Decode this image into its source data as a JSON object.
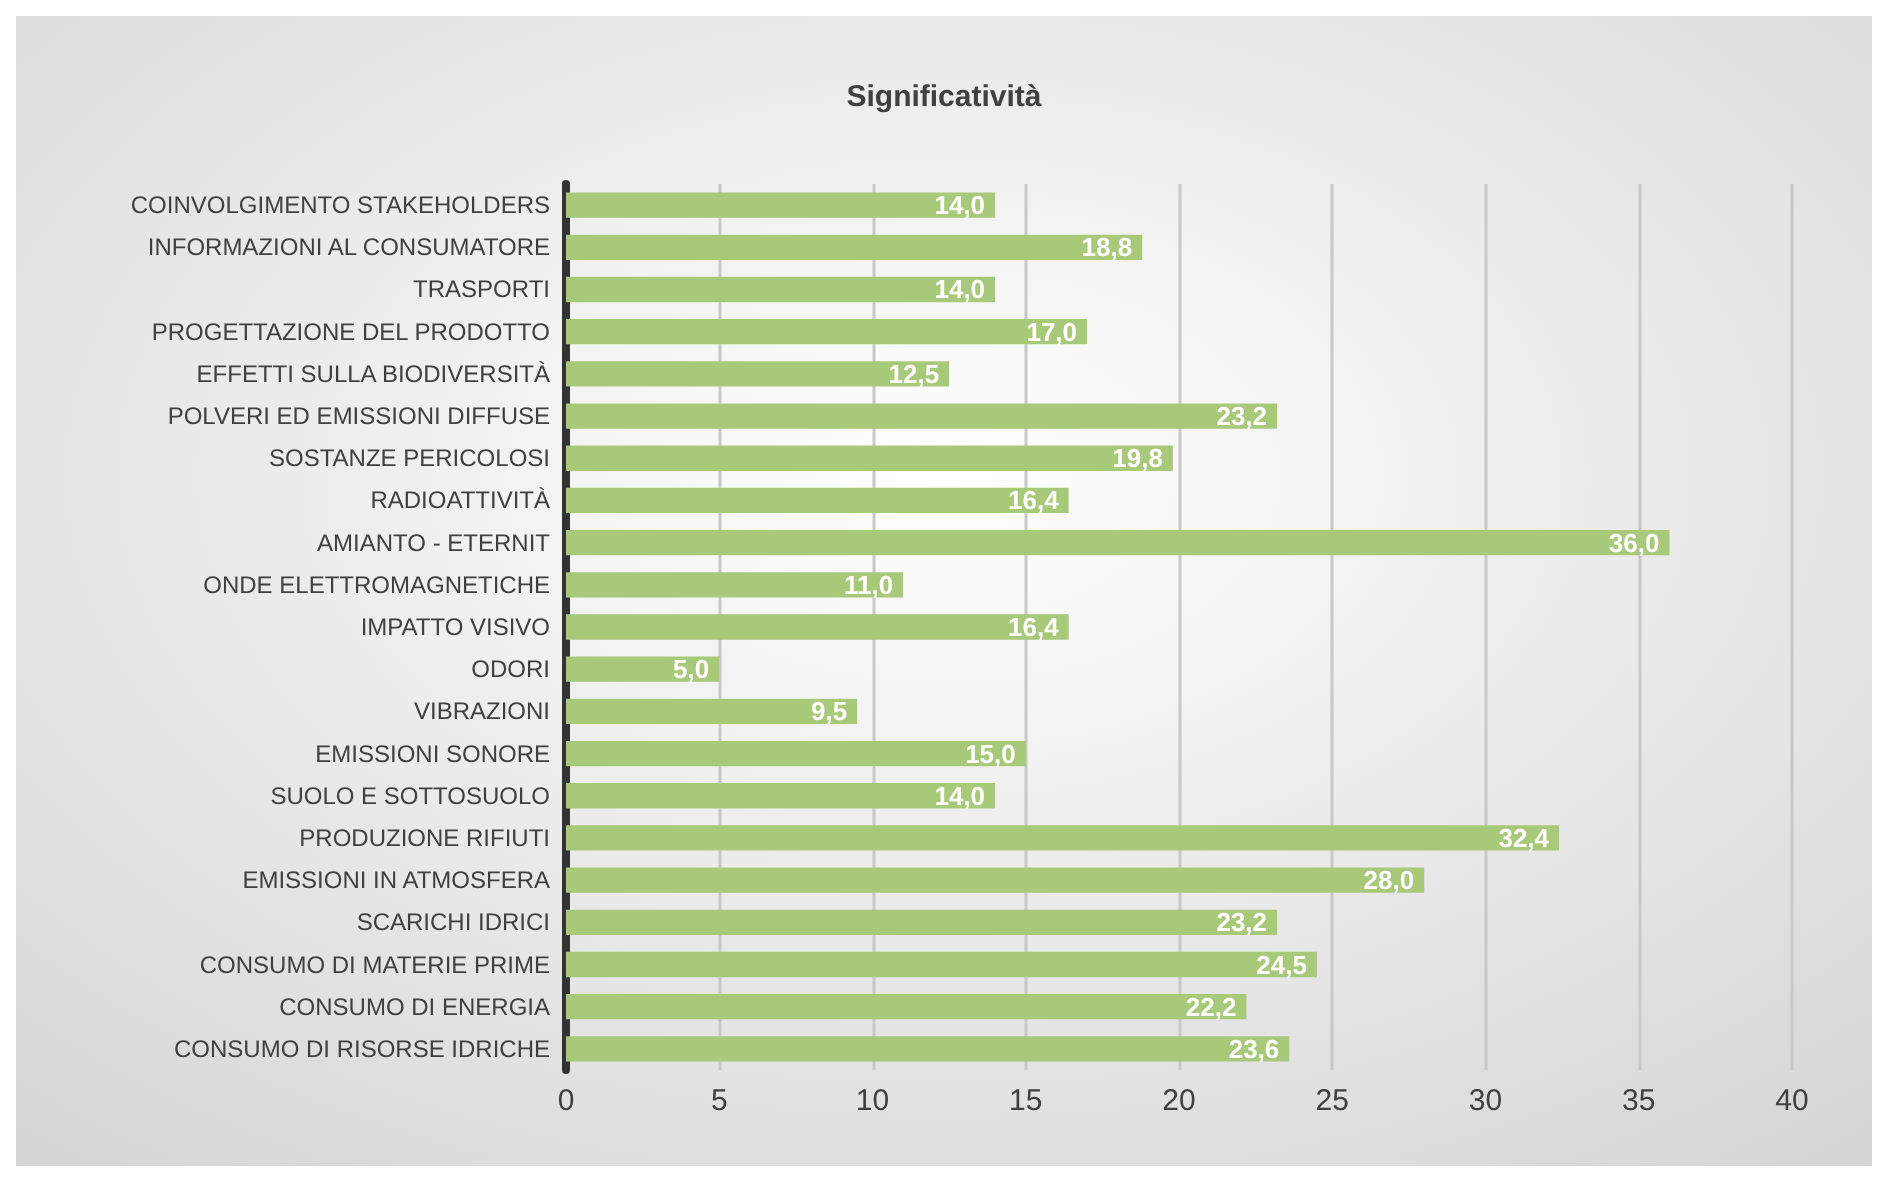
{
  "chart_data": {
    "type": "bar",
    "title": "Significatività",
    "orientation": "horizontal",
    "categories": [
      "COINVOLGIMENTO STAKEHOLDERS",
      "INFORMAZIONI AL CONSUMATORE",
      "TRASPORTI",
      "PROGETTAZIONE DEL PRODOTTO",
      "EFFETTI SULLA BIODIVERSITÀ",
      "POLVERI ED EMISSIONI DIFFUSE",
      "SOSTANZE PERICOLOSI",
      "RADIOATTIVITÀ",
      "AMIANTO - ETERNIT",
      "ONDE ELETTROMAGNETICHE",
      "IMPATTO VISIVO",
      "ODORI",
      "VIBRAZIONI",
      "EMISSIONI SONORE",
      "SUOLO E SOTTOSUOLO",
      "PRODUZIONE RIFIUTI",
      "EMISSIONI IN ATMOSFERA",
      "SCARICHI IDRICI",
      "CONSUMO DI MATERIE PRIME",
      "CONSUMO DI ENERGIA",
      "CONSUMO DI RISORSE IDRICHE"
    ],
    "values": [
      14.0,
      18.8,
      14.0,
      17.0,
      12.5,
      23.2,
      19.8,
      16.4,
      36.0,
      11.0,
      16.4,
      5.0,
      9.5,
      15.0,
      14.0,
      32.4,
      28.0,
      23.2,
      24.5,
      22.2,
      23.6
    ],
    "value_labels": [
      "14,0",
      "18,8",
      "14,0",
      "17,0",
      "12,5",
      "23,2",
      "19,8",
      "16,4",
      "36,0",
      "11,0",
      "16,4",
      "5,0",
      "9,5",
      "15,0",
      "14,0",
      "32,4",
      "28,0",
      "23,2",
      "24,5",
      "22,2",
      "23,6"
    ],
    "color": "#a9c97a",
    "xlim": [
      0,
      40
    ],
    "xticks": [
      0,
      5,
      10,
      15,
      20,
      25,
      30,
      35,
      40
    ],
    "grid": "x"
  }
}
